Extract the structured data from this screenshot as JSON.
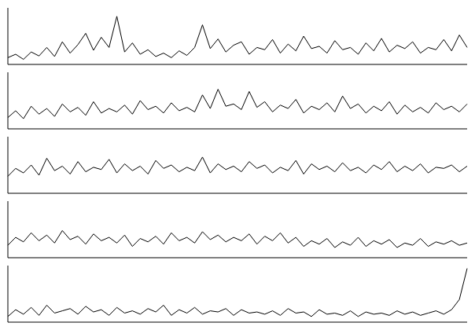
{
  "chart_data": [
    {
      "type": "line",
      "color": "#000000",
      "ylim": [
        0,
        100
      ],
      "tick_labels": false,
      "values": [
        12,
        18,
        9,
        22,
        15,
        30,
        14,
        40,
        20,
        35,
        55,
        25,
        48,
        30,
        85,
        22,
        38,
        18,
        26,
        14,
        20,
        12,
        24,
        16,
        30,
        70,
        28,
        45,
        22,
        34,
        40,
        18,
        30,
        26,
        44,
        20,
        36,
        24,
        50,
        28,
        32,
        20,
        42,
        26,
        30,
        18,
        38,
        24,
        46,
        22,
        34,
        28,
        40,
        20,
        30,
        26,
        44,
        24,
        52,
        30
      ]
    },
    {
      "type": "line",
      "color": "#000000",
      "ylim": [
        0,
        100
      ],
      "tick_labels": false,
      "values": [
        20,
        32,
        18,
        40,
        26,
        36,
        22,
        44,
        30,
        38,
        24,
        48,
        28,
        36,
        30,
        42,
        26,
        50,
        34,
        40,
        28,
        46,
        32,
        38,
        30,
        60,
        36,
        70,
        40,
        44,
        34,
        66,
        38,
        48,
        30,
        42,
        36,
        52,
        28,
        40,
        34,
        46,
        30,
        58,
        36,
        44,
        28,
        40,
        32,
        48,
        26,
        42,
        30,
        38,
        28,
        46,
        34,
        40,
        30,
        44
      ]
    },
    {
      "type": "line",
      "color": "#000000",
      "ylim": [
        0,
        100
      ],
      "tick_labels": false,
      "values": [
        30,
        44,
        36,
        50,
        32,
        62,
        40,
        48,
        34,
        56,
        38,
        46,
        42,
        60,
        36,
        52,
        40,
        48,
        34,
        58,
        44,
        50,
        38,
        46,
        40,
        64,
        36,
        52,
        42,
        48,
        38,
        56,
        44,
        50,
        36,
        46,
        40,
        58,
        34,
        52,
        42,
        48,
        38,
        54,
        40,
        46,
        36,
        50,
        42,
        56,
        38,
        48,
        40,
        52,
        36,
        46,
        44,
        50,
        38,
        48
      ]
    },
    {
      "type": "line",
      "color": "#000000",
      "ylim": [
        0,
        100
      ],
      "tick_labels": false,
      "values": [
        22,
        36,
        28,
        44,
        30,
        40,
        26,
        48,
        32,
        38,
        24,
        42,
        30,
        36,
        26,
        40,
        20,
        34,
        28,
        38,
        24,
        44,
        30,
        36,
        26,
        46,
        32,
        40,
        28,
        36,
        30,
        42,
        24,
        38,
        30,
        44,
        26,
        36,
        20,
        30,
        24,
        34,
        18,
        28,
        22,
        36,
        20,
        30,
        24,
        32,
        18,
        26,
        22,
        34,
        20,
        28,
        24,
        30,
        22,
        26
      ]
    },
    {
      "type": "line",
      "color": "#000000",
      "ylim": [
        0,
        100
      ],
      "tick_labels": false,
      "values": [
        10,
        22,
        14,
        26,
        12,
        30,
        16,
        20,
        24,
        14,
        28,
        18,
        22,
        12,
        26,
        16,
        20,
        14,
        24,
        18,
        30,
        12,
        22,
        16,
        26,
        14,
        20,
        18,
        24,
        12,
        22,
        16,
        18,
        14,
        20,
        12,
        24,
        16,
        18,
        10,
        22,
        14,
        16,
        12,
        20,
        10,
        18,
        14,
        16,
        12,
        20,
        14,
        18,
        12,
        16,
        20,
        14,
        22,
        40,
        95
      ]
    }
  ]
}
